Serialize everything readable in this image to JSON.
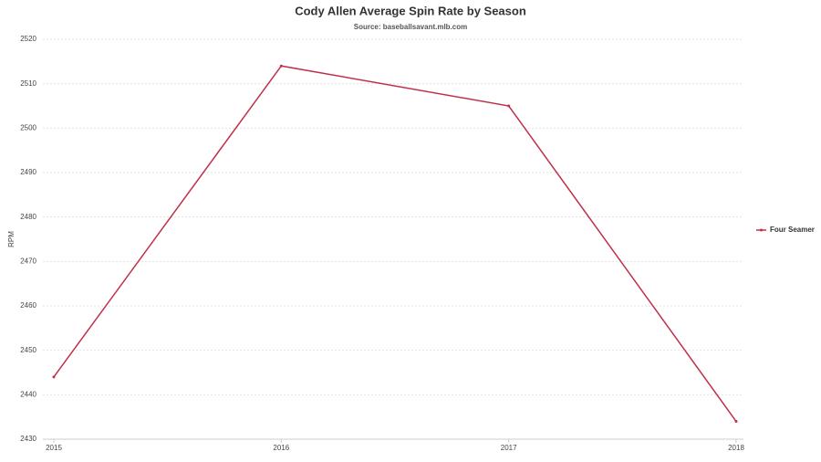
{
  "chart_data": {
    "type": "line",
    "title": "Cody Allen Average Spin Rate by Season",
    "subtitle": "Source: baseballsavant.mlb.com",
    "y_label": "RPM",
    "x": [
      2015,
      2016,
      2017,
      2018
    ],
    "xlim": [
      2015,
      2018
    ],
    "xticks": [
      2015,
      2016,
      2017,
      2018
    ],
    "series": [
      {
        "name": "Four Seamer",
        "color": "#c0304a",
        "values": [
          2444,
          2514,
          2505,
          2434
        ]
      }
    ],
    "ylim": [
      2430,
      2520
    ],
    "yticks": [
      2430,
      2440,
      2450,
      2460,
      2470,
      2480,
      2490,
      2500,
      2510,
      2520
    ],
    "grid": true,
    "legend": "right"
  }
}
